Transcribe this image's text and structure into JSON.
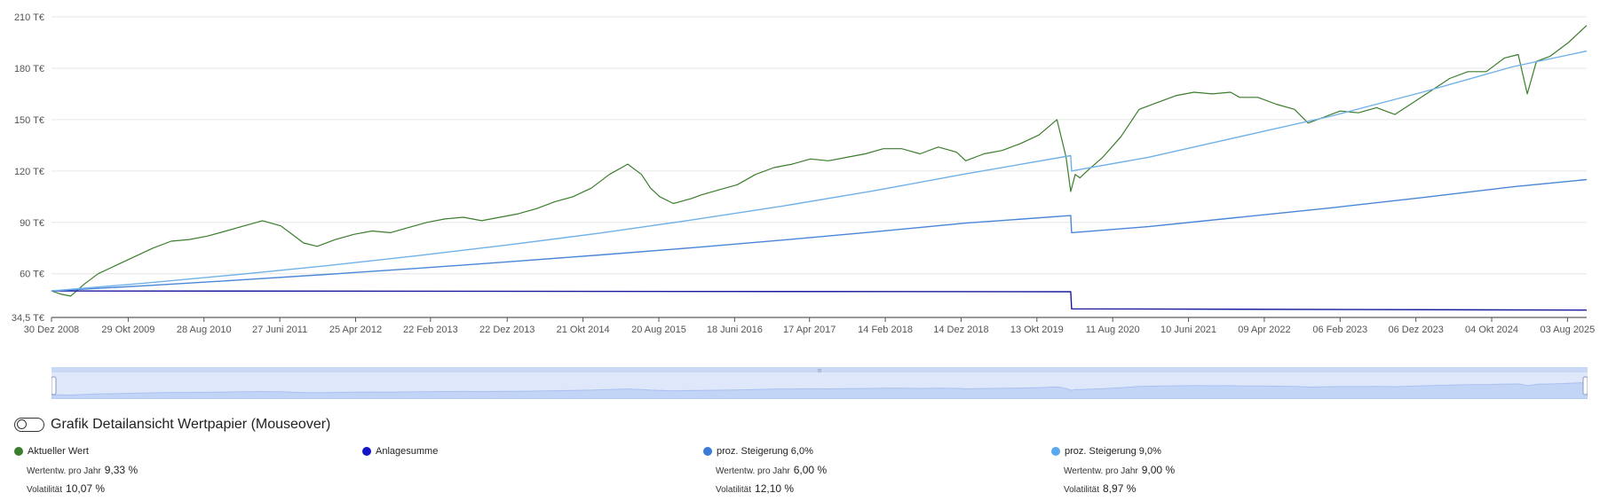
{
  "chart_data": {
    "type": "line",
    "y_ticks": [
      "210 T€",
      "180 T€",
      "150 T€",
      "120 T€",
      "90 T€",
      "60 T€",
      "34,5 T€"
    ],
    "y_tick_values": [
      210,
      180,
      150,
      120,
      90,
      60,
      34.5
    ],
    "ylim": [
      34.5,
      210
    ],
    "x_ticks": [
      "30 Dez 2008",
      "29 Okt 2009",
      "28 Aug 2010",
      "27 Juni 2011",
      "25 Apr 2012",
      "22 Feb 2013",
      "22 Dez 2013",
      "21 Okt 2014",
      "20 Aug 2015",
      "18 Juni 2016",
      "17 Apr 2017",
      "14 Feb 2018",
      "14 Dez 2018",
      "13 Okt 2019",
      "11 Aug 2020",
      "10 Juni 2021",
      "09 Apr 2022",
      "06 Feb 2023",
      "06 Dez 2023",
      "04 Okt 2024",
      "03 Aug 2025"
    ],
    "x_tick_years": [
      2008.99,
      2009.83,
      2010.66,
      2011.49,
      2012.32,
      2013.14,
      2013.98,
      2014.81,
      2015.64,
      2016.47,
      2017.29,
      2018.12,
      2018.95,
      2019.78,
      2020.61,
      2021.44,
      2022.27,
      2023.1,
      2023.93,
      2024.76,
      2025.59
    ],
    "xlim": [
      2008.99,
      2025.8
    ],
    "grid": true,
    "series": [
      {
        "name": "Aktueller Wert",
        "color": "#3a7d2c",
        "x": [
          2008.99,
          2009.1,
          2009.2,
          2009.35,
          2009.5,
          2009.7,
          2009.9,
          2010.1,
          2010.3,
          2010.5,
          2010.7,
          2010.9,
          2011.1,
          2011.3,
          2011.5,
          2011.6,
          2011.75,
          2011.9,
          2012.1,
          2012.3,
          2012.5,
          2012.7,
          2012.9,
          2013.1,
          2013.3,
          2013.5,
          2013.7,
          2013.9,
          2014.1,
          2014.3,
          2014.5,
          2014.7,
          2014.9,
          2015.1,
          2015.3,
          2015.45,
          2015.55,
          2015.65,
          2015.8,
          2016.0,
          2016.1,
          2016.3,
          2016.5,
          2016.7,
          2016.9,
          2017.1,
          2017.3,
          2017.5,
          2017.7,
          2017.9,
          2018.1,
          2018.3,
          2018.5,
          2018.7,
          2018.9,
          2019.0,
          2019.2,
          2019.4,
          2019.6,
          2019.8,
          2020.0,
          2020.1,
          2020.15,
          2020.2,
          2020.25,
          2020.35,
          2020.5,
          2020.7,
          2020.9,
          2021.1,
          2021.3,
          2021.5,
          2021.7,
          2021.9,
          2022.0,
          2022.2,
          2022.4,
          2022.6,
          2022.75,
          2022.9,
          2023.1,
          2023.3,
          2023.5,
          2023.7,
          2023.9,
          2024.1,
          2024.3,
          2024.5,
          2024.7,
          2024.9,
          2025.05,
          2025.15,
          2025.25,
          2025.4,
          2025.6,
          2025.8
        ],
        "y": [
          50,
          48,
          47,
          54,
          60,
          65,
          70,
          75,
          79,
          80,
          82,
          85,
          88,
          91,
          88,
          84,
          78,
          76,
          80,
          83,
          85,
          84,
          87,
          90,
          92,
          93,
          91,
          93,
          95,
          98,
          102,
          105,
          110,
          118,
          124,
          118,
          110,
          105,
          101,
          104,
          106,
          109,
          112,
          118,
          122,
          124,
          127,
          126,
          128,
          130,
          133,
          133,
          130,
          134,
          131,
          126,
          130,
          132,
          136,
          141,
          150,
          128,
          108,
          118,
          116,
          121,
          128,
          140,
          156,
          160,
          164,
          166,
          165,
          166,
          163,
          163,
          159,
          156,
          148,
          151,
          155,
          154,
          157,
          153,
          160,
          167,
          174,
          178,
          178,
          186,
          188,
          165,
          184,
          187,
          195,
          205
        ]
      },
      {
        "name": "Anlagesumme",
        "color": "#1a1a9e",
        "x": [
          2008.99,
          2020.15,
          2020.16,
          2025.8
        ],
        "y": [
          50,
          49.5,
          39.5,
          38.8
        ]
      },
      {
        "name": "proz. Steigerung 6,0%",
        "color": "#4a86d8",
        "x": [
          2008.99,
          2010.0,
          2011.0,
          2012.0,
          2013.0,
          2014.0,
          2015.0,
          2016.0,
          2017.0,
          2018.0,
          2019.0,
          2020.15,
          2020.16,
          2021.0,
          2022.0,
          2023.0,
          2024.0,
          2025.0,
          2025.8
        ],
        "y": [
          50,
          53,
          56.2,
          59.6,
          63.2,
          67,
          71,
          75.2,
          79.7,
          84.5,
          89.6,
          94,
          84,
          87.5,
          93,
          98.5,
          104.5,
          110.8,
          115
        ]
      },
      {
        "name": "proz. Steigerung 9,0%",
        "color": "#6fb1e8",
        "x": [
          2008.99,
          2010.0,
          2011.0,
          2012.0,
          2013.0,
          2014.0,
          2015.0,
          2016.0,
          2017.0,
          2018.0,
          2019.0,
          2020.15,
          2020.16,
          2021.0,
          2022.0,
          2023.0,
          2024.0,
          2025.0,
          2025.8
        ],
        "y": [
          50,
          54.5,
          59.4,
          64.7,
          70.6,
          76.9,
          83.8,
          91.4,
          99.6,
          108.5,
          118.3,
          129,
          120,
          128,
          140,
          152,
          166,
          181,
          190
        ]
      }
    ],
    "navigator_handle_glyph": "≡"
  },
  "toggle": {
    "label": "Grafik Detailansicht Wertpapier (Mouseover)"
  },
  "legend": [
    {
      "title": "Aktueller Wert",
      "color": "#3a7d2c",
      "stats": [
        {
          "label": "Wertentw. pro Jahr",
          "value": "9,33 %"
        },
        {
          "label": "Volatilität",
          "value": "10,07 %"
        }
      ]
    },
    {
      "title": "Anlagesumme",
      "color": "#1414c8",
      "stats": []
    },
    {
      "title": "proz. Steigerung 6,0%",
      "color": "#3a7bd5",
      "stats": [
        {
          "label": "Wertentw. pro Jahr",
          "value": "6,00 %"
        },
        {
          "label": "Volatilität",
          "value": "12,10 %"
        }
      ]
    },
    {
      "title": "proz. Steigerung 9,0%",
      "color": "#5aa8ee",
      "stats": [
        {
          "label": "Wertentw. pro Jahr",
          "value": "9,00 %"
        },
        {
          "label": "Volatilität",
          "value": "8,97 %"
        }
      ]
    }
  ]
}
